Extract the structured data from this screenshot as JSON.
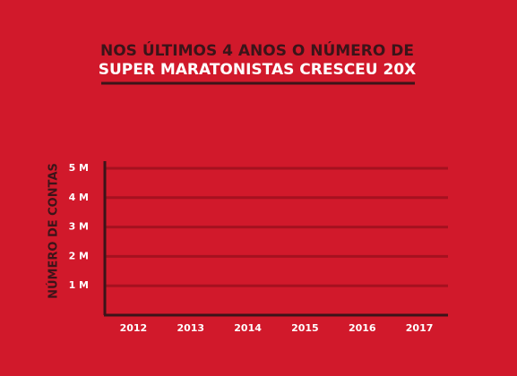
{
  "chart_data": {
    "type": "bar",
    "title": [
      "NOS ÚLTIMOS 4 ANOS O NÚMERO DE",
      "SUPER MARATONISTAS CRESCEU 20X"
    ],
    "y_label": "NÚMERO DE CONTAS",
    "categories": [
      "2012",
      "2013",
      "2014",
      "2015",
      "2016",
      "2017"
    ],
    "ylim": [
      0,
      5000000
    ],
    "yticks": [
      {
        "value": 1000000,
        "label": "1 M"
      },
      {
        "value": 2000000,
        "label": "2 M"
      },
      {
        "value": 3000000,
        "label": "3 M"
      },
      {
        "value": 4000000,
        "label": "4 M"
      },
      {
        "value": 5000000,
        "label": "5 M"
      }
    ],
    "grid": true
  }
}
